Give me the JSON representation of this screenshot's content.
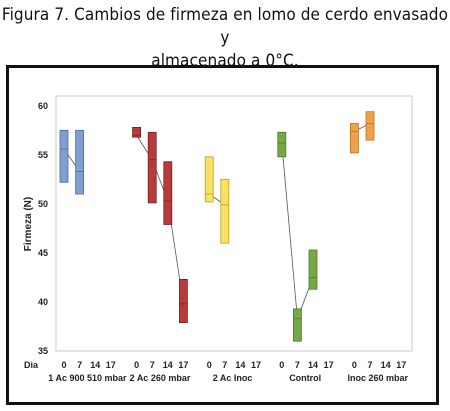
{
  "caption": {
    "line1": "Figura 7. Cambios de firmeza en lomo de cerdo envasado y",
    "line2": "almacenado a 0°C."
  },
  "chart_data": {
    "type": "boxplot",
    "title": "",
    "ylabel": "Firmeza (N)",
    "xlabel_prefix": "Dia",
    "ylim": [
      35,
      61
    ],
    "yticks": [
      35,
      40,
      45,
      50,
      55,
      60
    ],
    "days": [
      "0",
      "7",
      "14",
      "17"
    ],
    "grid": false,
    "groups": [
      {
        "name": "1 Ac 900 510 mbar",
        "color": "#7f9fd1",
        "stroke": "#4a6aa8",
        "boxes": [
          {
            "day": "0",
            "low": 52.2,
            "high": 57.5,
            "median": 55.6
          },
          {
            "day": "7",
            "low": 51.0,
            "high": 57.5,
            "median": 53.3
          }
        ]
      },
      {
        "name": "2 Ac 260 mbar",
        "color": "#b83b3b",
        "stroke": "#7a1f1f",
        "boxes": [
          {
            "day": "0",
            "low": 56.8,
            "high": 57.8,
            "median": 57.0
          },
          {
            "day": "7",
            "low": 50.1,
            "high": 57.3,
            "median": 54.5
          },
          {
            "day": "14",
            "low": 47.9,
            "high": 54.3,
            "median": 50.3
          },
          {
            "day": "17",
            "low": 37.9,
            "high": 42.3,
            "median": 39.8
          }
        ]
      },
      {
        "name": "2 Ac Inoc",
        "color": "#f7e35f",
        "stroke": "#b8a228",
        "boxes": [
          {
            "day": "0",
            "low": 50.2,
            "high": 54.8,
            "median": 51.0
          },
          {
            "day": "7",
            "low": 46.0,
            "high": 52.5,
            "median": 49.9
          }
        ]
      },
      {
        "name": "Control",
        "color": "#77a846",
        "stroke": "#4d7a2a",
        "boxes": [
          {
            "day": "0",
            "low": 54.8,
            "high": 57.3,
            "median": 56.2
          },
          {
            "day": "7",
            "low": 36.0,
            "high": 39.3,
            "median": 38.3
          },
          {
            "day": "14",
            "low": 41.3,
            "high": 45.3,
            "median": 42.5
          }
        ]
      },
      {
        "name": "Inoc 260 mbar",
        "color": "#f0a046",
        "stroke": "#b87420",
        "boxes": [
          {
            "day": "0",
            "low": 55.2,
            "high": 58.2,
            "median": 57.4
          },
          {
            "day": "7",
            "low": 56.5,
            "high": 59.4,
            "median": 58.2
          }
        ]
      }
    ]
  }
}
